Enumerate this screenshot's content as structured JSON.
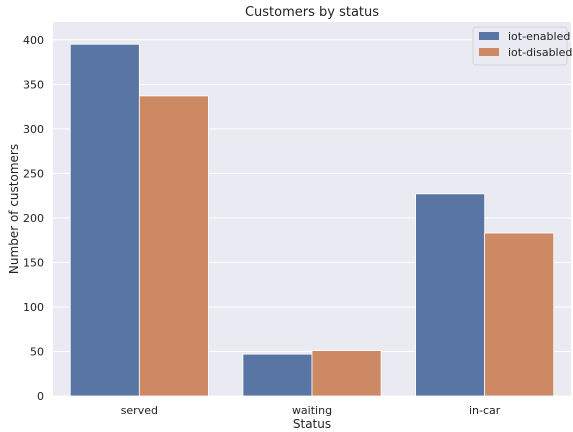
{
  "chart_data": {
    "type": "bar",
    "title": "Customers by status",
    "xlabel": "Status",
    "ylabel": "Number of customers",
    "categories": [
      "served",
      "waiting",
      "in-car"
    ],
    "series": [
      {
        "name": "iot-enabled",
        "values": [
          395,
          47,
          227
        ],
        "color": "#5875a4"
      },
      {
        "name": "iot-disabled",
        "values": [
          337,
          51,
          183
        ],
        "color": "#cc8963"
      }
    ],
    "ylim": [
      0,
      420
    ],
    "yticks": [
      0,
      50,
      100,
      150,
      200,
      250,
      300,
      350,
      400
    ],
    "grid": true,
    "legend_position": "top-right",
    "plot_background": "#eaeaf2"
  }
}
